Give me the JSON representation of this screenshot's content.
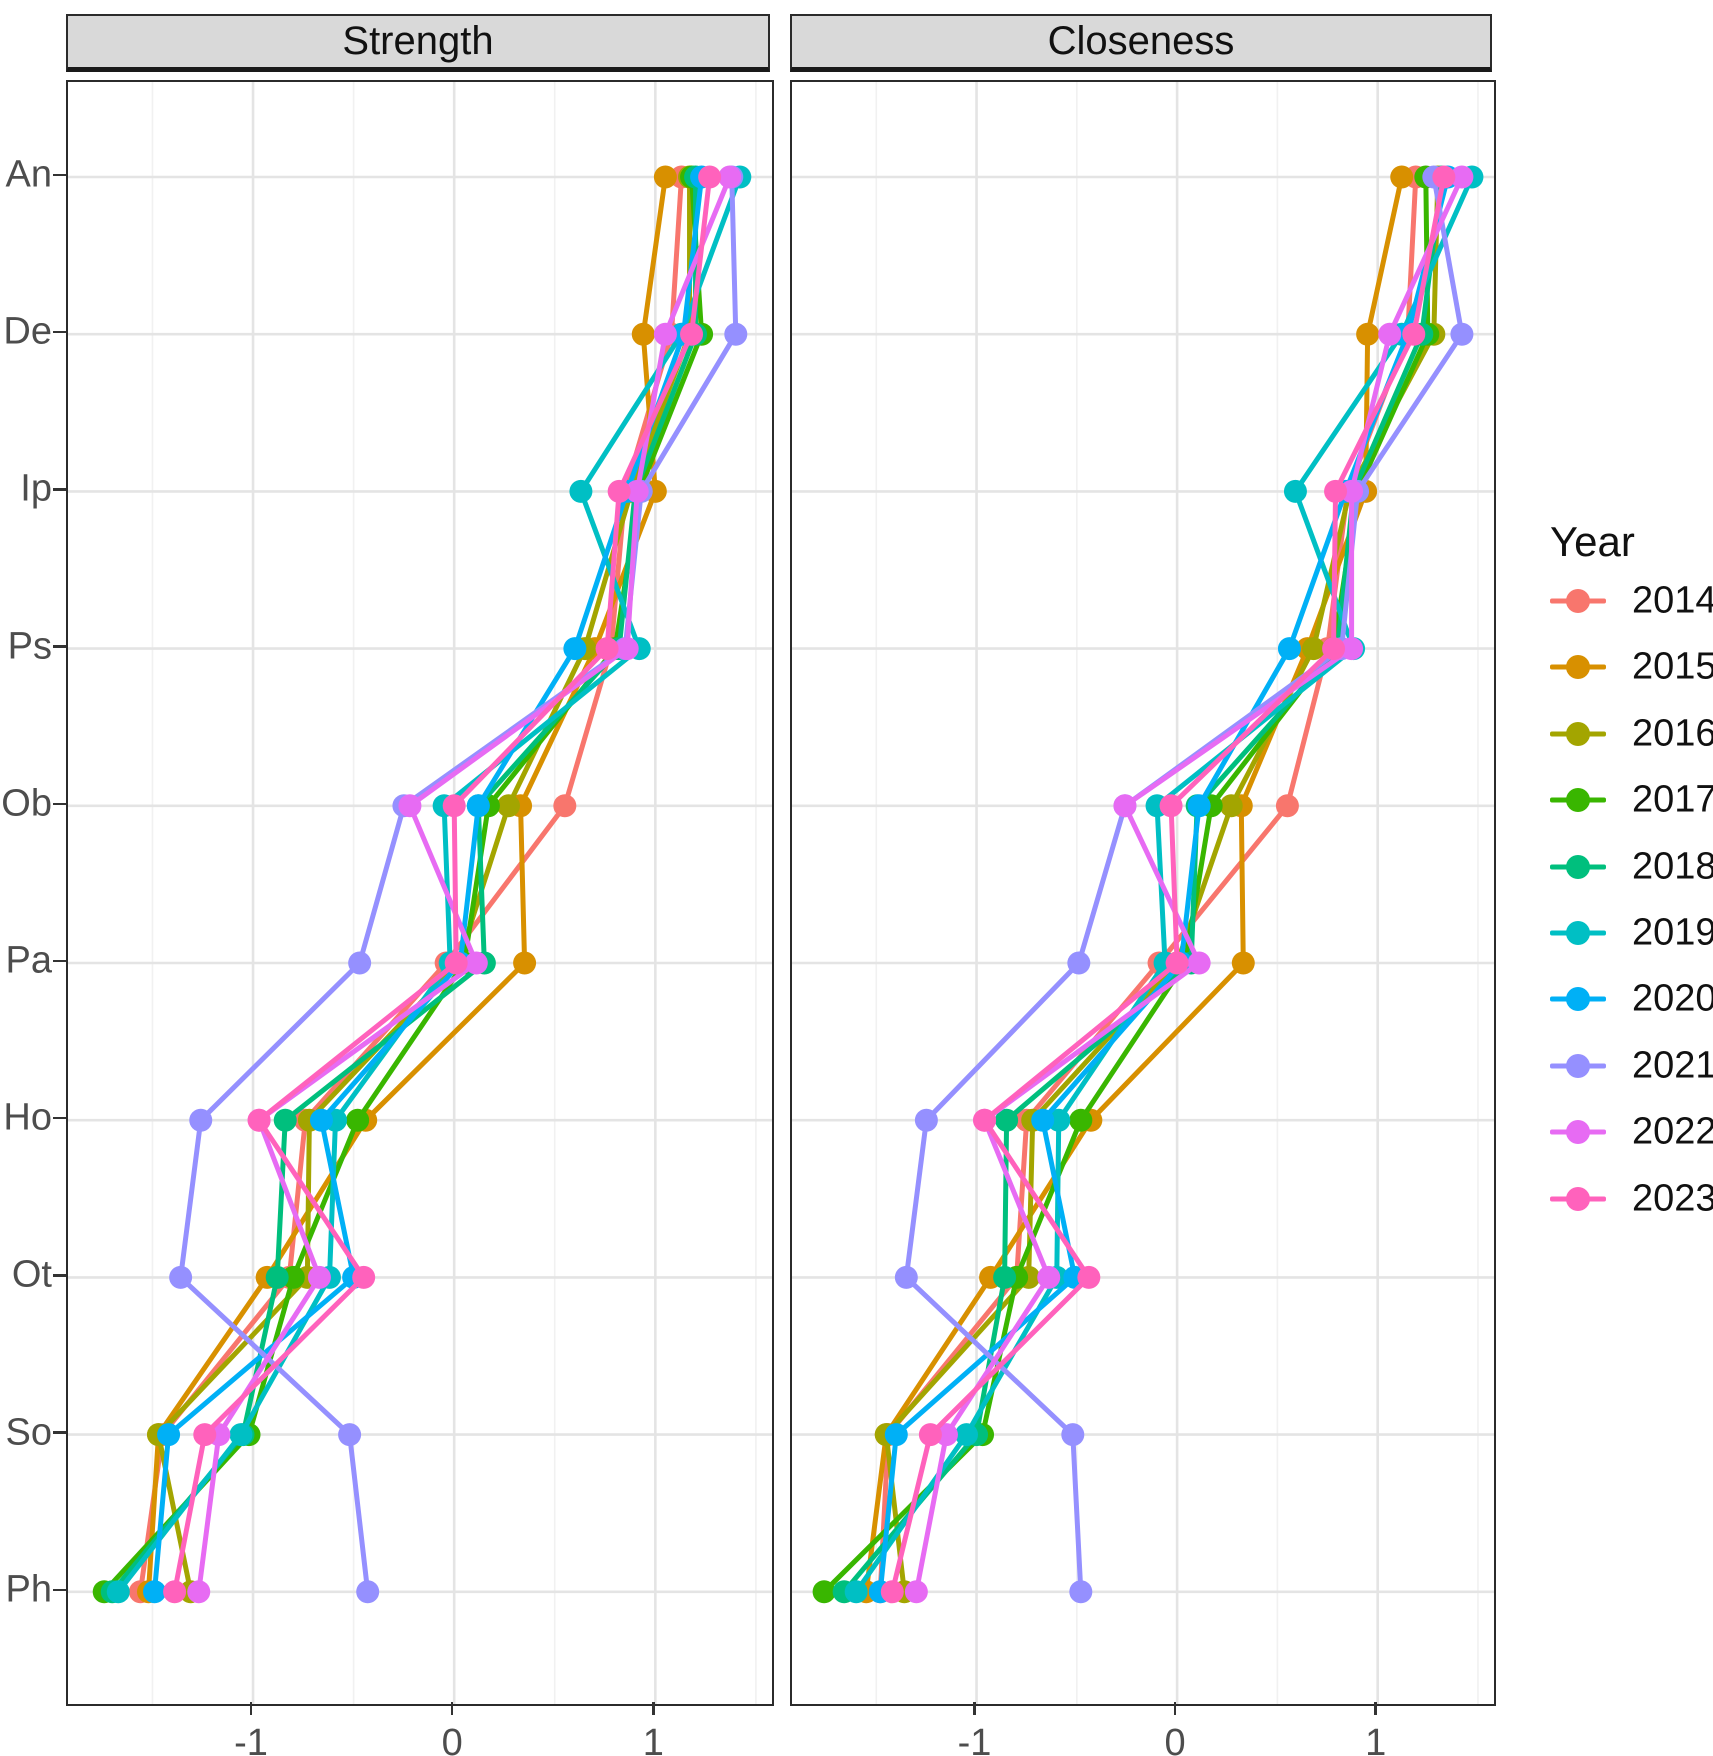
{
  "figure_title": "",
  "legend": {
    "title": "Year",
    "entries": [
      {
        "label": "2014",
        "color": "#F8766D"
      },
      {
        "label": "2015",
        "color": "#D89000"
      },
      {
        "label": "2016",
        "color": "#A3A500"
      },
      {
        "label": "2017",
        "color": "#39B600"
      },
      {
        "label": "2018",
        "color": "#00BF7D"
      },
      {
        "label": "2019",
        "color": "#00BFC4"
      },
      {
        "label": "2020",
        "color": "#00B0F6"
      },
      {
        "label": "2021",
        "color": "#9590FF"
      },
      {
        "label": "2022",
        "color": "#E76BF3"
      },
      {
        "label": "2023",
        "color": "#FF62BC"
      }
    ]
  },
  "axes": {
    "categories": [
      "An",
      "De",
      "Ip",
      "Ps",
      "Ob",
      "Pa",
      "Ho",
      "Ot",
      "So",
      "Ph"
    ],
    "x_tick_labels": [
      "-1",
      "0",
      "1"
    ],
    "x_tick_values": [
      -1,
      0,
      1
    ],
    "x_minor_values": [
      -1.5,
      -0.5,
      0.5,
      1.5
    ],
    "x_range": [
      -1.92,
      1.58
    ],
    "grid": "on",
    "legend_position": "right"
  },
  "chart_data": [
    {
      "type": "line",
      "title": "Strength",
      "orientation": "value on x, category on y (top=An .. bottom=Ph)",
      "categories": [
        "An",
        "De",
        "Ip",
        "Ps",
        "Ob",
        "Pa",
        "Ho",
        "Ot",
        "So",
        "Ph"
      ],
      "xlabel": "",
      "ylabel": "",
      "xlim": [
        -1.92,
        1.58
      ],
      "series": [
        {
          "name": "2014",
          "color": "#F8766D",
          "values": [
            1.13,
            1.08,
            0.85,
            0.78,
            0.55,
            -0.04,
            -0.74,
            -0.82,
            -1.45,
            -1.56
          ]
        },
        {
          "name": "2015",
          "color": "#D89000",
          "values": [
            1.05,
            0.94,
            1.0,
            0.7,
            0.33,
            0.35,
            -0.44,
            -0.93,
            -1.47,
            -1.52
          ]
        },
        {
          "name": "2016",
          "color": "#A3A500",
          "values": [
            1.17,
            1.17,
            0.88,
            0.65,
            0.27,
            0.02,
            -0.72,
            -0.73,
            -1.47,
            -1.31
          ]
        },
        {
          "name": "2017",
          "color": "#39B600",
          "values": [
            1.18,
            1.23,
            0.92,
            0.8,
            0.17,
            0.05,
            -0.48,
            -0.8,
            -1.02,
            -1.74
          ]
        },
        {
          "name": "2018",
          "color": "#00BF7D",
          "values": [
            1.2,
            1.2,
            0.9,
            0.82,
            0.12,
            0.15,
            -0.84,
            -0.88,
            -1.05,
            -1.7
          ]
        },
        {
          "name": "2019",
          "color": "#00BFC4",
          "values": [
            1.42,
            1.13,
            0.63,
            0.92,
            -0.05,
            -0.02,
            -0.59,
            -0.62,
            -1.06,
            -1.67
          ]
        },
        {
          "name": "2020",
          "color": "#00B0F6",
          "values": [
            1.23,
            1.14,
            0.86,
            0.6,
            0.12,
            0.03,
            -0.66,
            -0.5,
            -1.42,
            -1.49
          ]
        },
        {
          "name": "2021",
          "color": "#9590FF",
          "values": [
            1.38,
            1.4,
            0.93,
            0.85,
            -0.25,
            -0.47,
            -1.26,
            -1.36,
            -0.52,
            -0.43
          ]
        },
        {
          "name": "2022",
          "color": "#E76BF3",
          "values": [
            1.37,
            1.05,
            0.91,
            0.86,
            -0.22,
            0.11,
            -0.97,
            -0.67,
            -1.17,
            -1.27
          ]
        },
        {
          "name": "2023",
          "color": "#FF62BC",
          "values": [
            1.27,
            1.18,
            0.82,
            0.76,
            0.0,
            0.01,
            -0.97,
            -0.45,
            -1.24,
            -1.39
          ]
        }
      ]
    },
    {
      "type": "line",
      "title": "Closeness",
      "orientation": "value on x, category on y (top=An .. bottom=Ph)",
      "categories": [
        "An",
        "De",
        "Ip",
        "Ps",
        "Ob",
        "Pa",
        "Ho",
        "Ot",
        "So",
        "Ph"
      ],
      "xlabel": "",
      "ylabel": "",
      "xlim": [
        -1.92,
        1.58
      ],
      "series": [
        {
          "name": "2014",
          "color": "#F8766D",
          "values": [
            1.19,
            1.15,
            0.85,
            0.75,
            0.55,
            -0.09,
            -0.75,
            -0.8,
            -1.44,
            -1.48
          ]
        },
        {
          "name": "2015",
          "color": "#D89000",
          "values": [
            1.12,
            0.95,
            0.94,
            0.65,
            0.32,
            0.33,
            -0.43,
            -0.93,
            -1.45,
            -1.55
          ]
        },
        {
          "name": "2016",
          "color": "#A3A500",
          "values": [
            1.3,
            1.28,
            0.86,
            0.68,
            0.27,
            0.0,
            -0.72,
            -0.74,
            -1.45,
            -1.36
          ]
        },
        {
          "name": "2017",
          "color": "#39B600",
          "values": [
            1.24,
            1.25,
            0.9,
            0.78,
            0.17,
            0.04,
            -0.48,
            -0.8,
            -0.97,
            -1.76
          ]
        },
        {
          "name": "2018",
          "color": "#00BF7D",
          "values": [
            1.32,
            1.22,
            0.88,
            0.8,
            0.1,
            0.07,
            -0.85,
            -0.86,
            -1.0,
            -1.66
          ]
        },
        {
          "name": "2019",
          "color": "#00BFC4",
          "values": [
            1.47,
            1.12,
            0.59,
            0.88,
            -0.1,
            -0.06,
            -0.59,
            -0.6,
            -1.05,
            -1.6
          ]
        },
        {
          "name": "2020",
          "color": "#00B0F6",
          "values": [
            1.35,
            1.15,
            0.84,
            0.56,
            0.11,
            0.02,
            -0.67,
            -0.51,
            -1.4,
            -1.48
          ]
        },
        {
          "name": "2021",
          "color": "#9590FF",
          "values": [
            1.28,
            1.42,
            0.9,
            0.82,
            -0.26,
            -0.49,
            -1.25,
            -1.35,
            -0.52,
            -0.48
          ]
        },
        {
          "name": "2022",
          "color": "#E76BF3",
          "values": [
            1.42,
            1.06,
            0.87,
            0.87,
            -0.26,
            0.11,
            -0.96,
            -0.64,
            -1.15,
            -1.3
          ]
        },
        {
          "name": "2023",
          "color": "#FF62BC",
          "values": [
            1.33,
            1.18,
            0.79,
            0.78,
            -0.03,
            0.0,
            -0.96,
            -0.44,
            -1.23,
            -1.42
          ]
        }
      ]
    }
  ]
}
